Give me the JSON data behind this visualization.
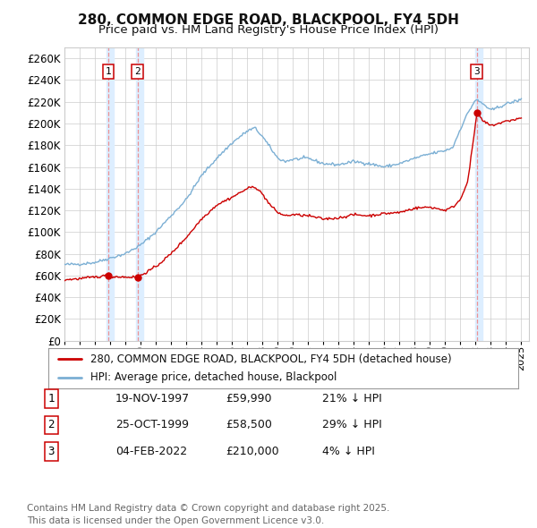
{
  "title": "280, COMMON EDGE ROAD, BLACKPOOL, FY4 5DH",
  "subtitle": "Price paid vs. HM Land Registry's House Price Index (HPI)",
  "ylim": [
    0,
    270000
  ],
  "yticks": [
    0,
    20000,
    40000,
    60000,
    80000,
    100000,
    120000,
    140000,
    160000,
    180000,
    200000,
    220000,
    240000,
    260000
  ],
  "bg_color": "#ffffff",
  "grid_color": "#cccccc",
  "hpi_color": "#7bafd4",
  "price_color": "#cc0000",
  "vline_color": "#ee8888",
  "vspan_color": "#ddeeff",
  "legend_items": [
    "280, COMMON EDGE ROAD, BLACKPOOL, FY4 5DH (detached house)",
    "HPI: Average price, detached house, Blackpool"
  ],
  "sales": [
    {
      "label": "1",
      "date_num": 1997.88,
      "price": 59990
    },
    {
      "label": "2",
      "date_num": 1999.81,
      "price": 58500
    },
    {
      "label": "3",
      "date_num": 2022.09,
      "price": 210000
    }
  ],
  "table_rows": [
    {
      "num": "1",
      "date": "19-NOV-1997",
      "price": "£59,990",
      "pct": "21% ↓ HPI"
    },
    {
      "num": "2",
      "date": "25-OCT-1999",
      "price": "£58,500",
      "pct": "29% ↓ HPI"
    },
    {
      "num": "3",
      "date": "04-FEB-2022",
      "price": "£210,000",
      "pct": "4% ↓ HPI"
    }
  ],
  "footnote": "Contains HM Land Registry data © Crown copyright and database right 2025.\nThis data is licensed under the Open Government Licence v3.0.",
  "hpi_anchors_x": [
    1995,
    1996,
    1997,
    1998,
    1999,
    2000,
    2001,
    2002,
    2003,
    2004,
    2005,
    2006,
    2007,
    2007.5,
    2008,
    2008.5,
    2009,
    2009.5,
    2010,
    2011,
    2012,
    2013,
    2014,
    2015,
    2016,
    2017,
    2018,
    2019,
    2020,
    2020.5,
    2021,
    2021.5,
    2022,
    2022.5,
    2023,
    2023.5,
    2024,
    2025
  ],
  "hpi_anchors_y": [
    70000,
    70500,
    72000,
    76000,
    80000,
    88000,
    100000,
    115000,
    130000,
    152000,
    168000,
    182000,
    193000,
    196000,
    188000,
    178000,
    168000,
    165000,
    167000,
    168000,
    163000,
    162000,
    165000,
    163000,
    160000,
    163000,
    168000,
    172000,
    175000,
    178000,
    195000,
    210000,
    222000,
    218000,
    212000,
    215000,
    218000,
    222000
  ],
  "pp_anchors_x": [
    1995,
    1996,
    1997,
    1997.88,
    1998,
    1999,
    1999.81,
    2000,
    2001,
    2002,
    2003,
    2004,
    2005,
    2006,
    2007,
    2007.5,
    2008,
    2008.5,
    2009,
    2009.5,
    2010,
    2011,
    2012,
    2013,
    2014,
    2015,
    2016,
    2017,
    2018,
    2019,
    2020,
    2020.5,
    2021,
    2021.5,
    2022.09,
    2022.5,
    2023,
    2023.5,
    2024,
    2025
  ],
  "pp_anchors_y": [
    56000,
    57000,
    58500,
    59990,
    59000,
    58500,
    58500,
    60000,
    68000,
    80000,
    95000,
    112000,
    125000,
    132000,
    140000,
    142000,
    135000,
    125000,
    118000,
    115000,
    116000,
    115000,
    112000,
    113000,
    116000,
    115000,
    117000,
    118000,
    122000,
    123000,
    120000,
    123000,
    130000,
    148000,
    210000,
    202000,
    198000,
    200000,
    202000,
    205000
  ]
}
